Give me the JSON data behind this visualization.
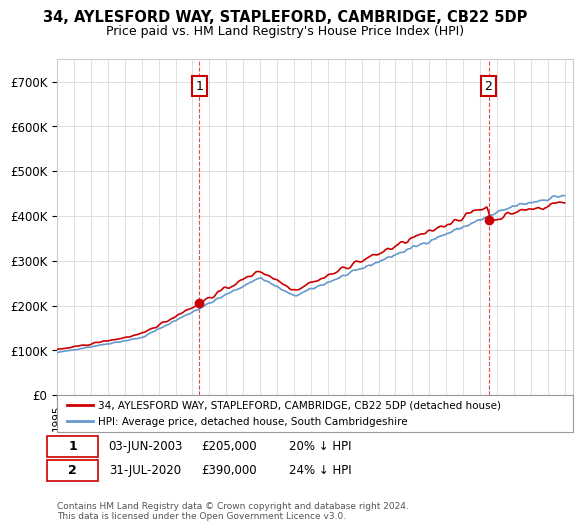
{
  "title": "34, AYLESFORD WAY, STAPLEFORD, CAMBRIDGE, CB22 5DP",
  "subtitle": "Price paid vs. HM Land Registry's House Price Index (HPI)",
  "legend_label_red": "34, AYLESFORD WAY, STAPLEFORD, CAMBRIDGE, CB22 5DP (detached house)",
  "legend_label_blue": "HPI: Average price, detached house, South Cambridgeshire",
  "annotation1_label": "1",
  "annotation1_date": "03-JUN-2003",
  "annotation1_price": "£205,000",
  "annotation1_hpi": "20% ↓ HPI",
  "annotation2_label": "2",
  "annotation2_date": "31-JUL-2020",
  "annotation2_price": "£390,000",
  "annotation2_hpi": "24% ↓ HPI",
  "footer": "Contains HM Land Registry data © Crown copyright and database right 2024.\nThis data is licensed under the Open Government Licence v3.0.",
  "background_color": "#ffffff",
  "plot_bg_color": "#ffffff",
  "grid_color": "#e0e0e0",
  "red_color": "#cc0000",
  "blue_color": "#6699cc",
  "ylim": [
    0,
    750000
  ],
  "yticks": [
    0,
    100000,
    200000,
    300000,
    400000,
    500000,
    600000,
    700000
  ],
  "start_year": 1995,
  "end_year": 2025
}
